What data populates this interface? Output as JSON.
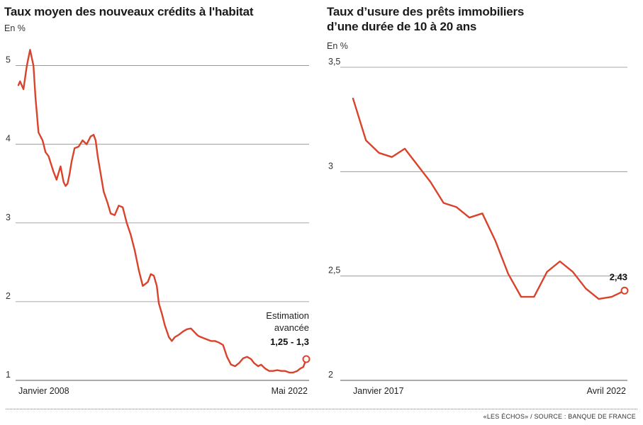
{
  "chart_data": [
    {
      "type": "line",
      "title": "Taux moyen des nouveaux crédits à l'habitat",
      "unit": "En %",
      "ylim": [
        1,
        5.5
      ],
      "yticks": [
        "1",
        "2",
        "3",
        "4",
        "5"
      ],
      "xlim": [
        2008.0,
        2022.35
      ],
      "xtick_labels": [
        "Janvier 2008",
        "Mai 2022"
      ],
      "grid": true,
      "line_color": "#d9432b",
      "annotation": {
        "line1": "Estimation",
        "line2": "avancée",
        "value": "1,25 - 1,3"
      },
      "series": [
        {
          "x": [
            2008.0,
            2008.08,
            2008.25,
            2008.42,
            2008.58,
            2008.75,
            2008.85,
            2009.0,
            2009.2,
            2009.35,
            2009.5,
            2009.75,
            2009.9,
            2010.1,
            2010.25,
            2010.35,
            2010.45,
            2010.55,
            2010.65,
            2010.8,
            2011.0,
            2011.2,
            2011.4,
            2011.6,
            2011.75,
            2011.85,
            2011.95,
            2012.05,
            2012.25,
            2012.45,
            2012.6,
            2012.8,
            2013.0,
            2013.2,
            2013.4,
            2013.6,
            2013.8,
            2014.0,
            2014.2,
            2014.45,
            2014.6,
            2014.75,
            2014.9,
            2015.0,
            2015.15,
            2015.3,
            2015.5,
            2015.65,
            2015.8,
            2016.0,
            2016.2,
            2016.4,
            2016.6,
            2016.75,
            2016.9,
            2017.0,
            2017.2,
            2017.4,
            2017.6,
            2017.8,
            2018.0,
            2018.2,
            2018.4,
            2018.6,
            2018.8,
            2019.0,
            2019.2,
            2019.4,
            2019.6,
            2019.75,
            2019.95,
            2020.1,
            2020.3,
            2020.5,
            2020.7,
            2020.9,
            2021.1,
            2021.3,
            2021.5,
            2021.7,
            2021.9,
            2022.05,
            2022.2,
            2022.35
          ],
          "y": [
            4.75,
            4.8,
            4.7,
            5.0,
            5.2,
            5.0,
            4.6,
            4.15,
            4.05,
            3.9,
            3.85,
            3.65,
            3.55,
            3.72,
            3.52,
            3.47,
            3.5,
            3.62,
            3.78,
            3.95,
            3.97,
            4.05,
            4.0,
            4.1,
            4.12,
            4.05,
            3.85,
            3.7,
            3.4,
            3.25,
            3.12,
            3.1,
            3.22,
            3.2,
            3.0,
            2.85,
            2.65,
            2.4,
            2.2,
            2.25,
            2.35,
            2.33,
            2.2,
            1.98,
            1.85,
            1.7,
            1.55,
            1.5,
            1.55,
            1.58,
            1.62,
            1.65,
            1.66,
            1.62,
            1.58,
            1.56,
            1.54,
            1.52,
            1.5,
            1.5,
            1.48,
            1.45,
            1.3,
            1.2,
            1.18,
            1.22,
            1.28,
            1.3,
            1.27,
            1.22,
            1.18,
            1.2,
            1.15,
            1.12,
            1.12,
            1.13,
            1.12,
            1.12,
            1.1,
            1.1,
            1.12,
            1.15,
            1.17,
            1.27
          ]
        }
      ]
    },
    {
      "type": "line",
      "title": "Taux d’usure des prêts immobiliers d’une durée de 10 à 20 ans",
      "title_lines": [
        "Taux d’usure des prêts immobiliers",
        "d’une durée de 10 à 20 ans"
      ],
      "unit": "En %",
      "ylim": [
        2,
        3.5
      ],
      "yticks": [
        "2",
        "2,5",
        "3",
        "3,5"
      ],
      "xlim": [
        2017.0,
        2022.25
      ],
      "xtick_labels": [
        "Janvier 2017",
        "Avril 2022"
      ],
      "grid": true,
      "line_color": "#d9432b",
      "end_label": "2,43",
      "series": [
        {
          "x": [
            2017.0,
            2017.25,
            2017.5,
            2017.75,
            2018.0,
            2018.25,
            2018.5,
            2018.75,
            2019.0,
            2019.25,
            2019.5,
            2019.75,
            2020.0,
            2020.25,
            2020.5,
            2020.75,
            2021.0,
            2021.25,
            2021.5,
            2021.75,
            2022.0,
            2022.25
          ],
          "y": [
            3.35,
            3.15,
            3.09,
            3.07,
            3.11,
            3.03,
            2.95,
            2.85,
            2.83,
            2.78,
            2.8,
            2.67,
            2.51,
            2.4,
            2.4,
            2.52,
            2.57,
            2.52,
            2.44,
            2.39,
            2.4,
            2.43
          ]
        }
      ]
    }
  ],
  "source": "«LES ÉCHOS» / SOURCE : BANQUE DE FRANCE"
}
